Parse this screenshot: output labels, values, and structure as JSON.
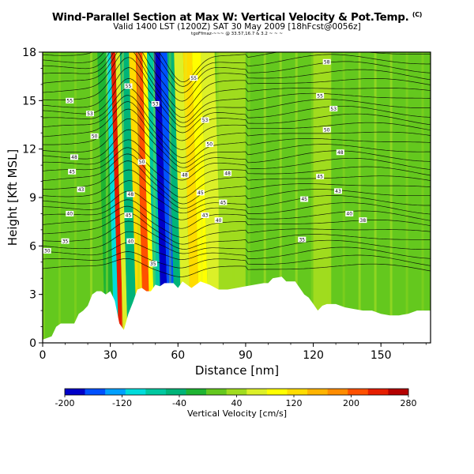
{
  "header": {
    "title": "Wind-Parallel Section at Max W: Vertical Velocity & Pot.Temp.",
    "title_suffix": "(C)",
    "subtitle": "Valid 1400 LST (1200Z) SAT 30 May 2009 [18hFcst@0056z]",
    "source_line": "tgoFfmaz-~~~ @ 33.57,16.7 & 3.2 ~ ~ ~"
  },
  "chart_data": {
    "type": "heatmap",
    "title": "Wind-Parallel Section at Max W: Vertical Velocity & Pot.Temp.",
    "xlabel": "Distance [nm]",
    "ylabel": "Height [Kft MSL]",
    "xlim": [
      0,
      172
    ],
    "ylim": [
      0,
      18
    ],
    "xticks": [
      0,
      30,
      60,
      90,
      120,
      150
    ],
    "yticks": [
      0,
      3,
      6,
      9,
      12,
      15,
      18
    ],
    "grid": false,
    "colorbar": {
      "label": "Vertical Velocity [cm/s]",
      "ticks": [
        -200,
        -120,
        -40,
        40,
        120,
        200,
        280
      ],
      "range": [
        -200,
        280
      ],
      "colors": [
        "#0000c8",
        "#0050ff",
        "#00a0ff",
        "#00dcdc",
        "#00c8a0",
        "#00b478",
        "#1eb432",
        "#64c81e",
        "#a0dc1e",
        "#dcf028",
        "#ffff00",
        "#ffdc00",
        "#ffb400",
        "#ff8c00",
        "#ff5000",
        "#e61e00",
        "#b40000"
      ]
    },
    "colorscale_note": "",
    "bands": [
      {
        "x": 0,
        "v": 20
      },
      {
        "x": 10,
        "v": 10
      },
      {
        "x": 20,
        "v": 15
      },
      {
        "x": 26,
        "v": -20
      },
      {
        "x": 30,
        "v": -100
      },
      {
        "x": 32,
        "v": 240
      },
      {
        "x": 34,
        "v": 80
      },
      {
        "x": 36,
        "v": -40
      },
      {
        "x": 40,
        "v": 120
      },
      {
        "x": 43,
        "v": 200
      },
      {
        "x": 46,
        "v": 90
      },
      {
        "x": 48,
        "v": -80
      },
      {
        "x": 51,
        "v": -180
      },
      {
        "x": 54,
        "v": -150
      },
      {
        "x": 57,
        "v": -40
      },
      {
        "x": 60,
        "v": 60
      },
      {
        "x": 64,
        "v": 130
      },
      {
        "x": 68,
        "v": 110
      },
      {
        "x": 72,
        "v": 60
      },
      {
        "x": 78,
        "v": 30
      },
      {
        "x": 90,
        "v": 10
      },
      {
        "x": 100,
        "v": 25
      },
      {
        "x": 110,
        "v": 15
      },
      {
        "x": 120,
        "v": 30
      },
      {
        "x": 128,
        "v": 15
      },
      {
        "x": 140,
        "v": 20
      },
      {
        "x": 150,
        "v": 10
      },
      {
        "x": 160,
        "v": 25
      },
      {
        "x": 172,
        "v": 10
      }
    ],
    "terrain": [
      [
        0,
        0.2
      ],
      [
        4,
        0.4
      ],
      [
        6,
        1.0
      ],
      [
        8,
        1.2
      ],
      [
        14,
        1.2
      ],
      [
        16,
        1.8
      ],
      [
        18,
        2.0
      ],
      [
        20,
        2.3
      ],
      [
        22,
        3.0
      ],
      [
        24,
        3.2
      ],
      [
        26,
        3.2
      ],
      [
        28,
        3.0
      ],
      [
        30,
        3.2
      ],
      [
        32,
        2.6
      ],
      [
        34,
        1.2
      ],
      [
        36,
        0.8
      ],
      [
        38,
        1.8
      ],
      [
        40,
        2.5
      ],
      [
        42,
        3.3
      ],
      [
        44,
        3.4
      ],
      [
        46,
        3.2
      ],
      [
        48,
        3.2
      ],
      [
        50,
        3.6
      ],
      [
        52,
        3.5
      ],
      [
        54,
        3.7
      ],
      [
        58,
        3.7
      ],
      [
        60,
        3.4
      ],
      [
        62,
        3.8
      ],
      [
        66,
        3.4
      ],
      [
        70,
        3.8
      ],
      [
        74,
        3.6
      ],
      [
        78,
        3.3
      ],
      [
        82,
        3.3
      ],
      [
        86,
        3.4
      ],
      [
        90,
        3.5
      ],
      [
        94,
        3.6
      ],
      [
        98,
        3.7
      ],
      [
        100,
        3.7
      ],
      [
        102,
        4.0
      ],
      [
        106,
        4.1
      ],
      [
        108,
        3.8
      ],
      [
        112,
        3.8
      ],
      [
        116,
        3.0
      ],
      [
        118,
        2.8
      ],
      [
        120,
        2.4
      ],
      [
        122,
        2.0
      ],
      [
        124,
        2.3
      ],
      [
        126,
        2.4
      ],
      [
        130,
        2.4
      ],
      [
        134,
        2.2
      ],
      [
        138,
        2.1
      ],
      [
        142,
        2.0
      ],
      [
        146,
        2.0
      ],
      [
        150,
        1.8
      ],
      [
        154,
        1.7
      ],
      [
        158,
        1.7
      ],
      [
        162,
        1.8
      ],
      [
        166,
        2.0
      ],
      [
        172,
        2.0
      ]
    ],
    "isentropes": {
      "count": 30,
      "base_height": 4.6,
      "spacing": 0.46,
      "labels": [
        {
          "x": 12,
          "y": 15.0,
          "text": "55"
        },
        {
          "x": 21,
          "y": 14.2,
          "text": "53"
        },
        {
          "x": 23,
          "y": 12.8,
          "text": "50"
        },
        {
          "x": 14,
          "y": 11.5,
          "text": "48"
        },
        {
          "x": 13,
          "y": 10.6,
          "text": "45"
        },
        {
          "x": 17,
          "y": 9.5,
          "text": "43"
        },
        {
          "x": 12,
          "y": 8.0,
          "text": "40"
        },
        {
          "x": 10,
          "y": 6.3,
          "text": "35"
        },
        {
          "x": 2,
          "y": 5.7,
          "text": "30"
        },
        {
          "x": 38,
          "y": 15.9,
          "text": "55"
        },
        {
          "x": 50,
          "y": 14.8,
          "text": "53"
        },
        {
          "x": 44,
          "y": 11.2,
          "text": "50"
        },
        {
          "x": 39,
          "y": 9.2,
          "text": "48"
        },
        {
          "x": 38,
          "y": 7.9,
          "text": "45"
        },
        {
          "x": 39,
          "y": 6.3,
          "text": "40"
        },
        {
          "x": 49,
          "y": 4.9,
          "text": "35"
        },
        {
          "x": 67,
          "y": 16.4,
          "text": "55"
        },
        {
          "x": 72,
          "y": 13.8,
          "text": "53"
        },
        {
          "x": 74,
          "y": 12.3,
          "text": "50"
        },
        {
          "x": 63,
          "y": 10.4,
          "text": "48"
        },
        {
          "x": 70,
          "y": 9.3,
          "text": "45"
        },
        {
          "x": 72,
          "y": 7.9,
          "text": "43"
        },
        {
          "x": 82,
          "y": 10.5,
          "text": "48"
        },
        {
          "x": 80,
          "y": 8.7,
          "text": "45"
        },
        {
          "x": 78,
          "y": 7.6,
          "text": "40"
        },
        {
          "x": 126,
          "y": 17.4,
          "text": "58"
        },
        {
          "x": 123,
          "y": 15.3,
          "text": "55"
        },
        {
          "x": 129,
          "y": 14.5,
          "text": "53"
        },
        {
          "x": 126,
          "y": 13.2,
          "text": "50"
        },
        {
          "x": 132,
          "y": 11.8,
          "text": "48"
        },
        {
          "x": 123,
          "y": 10.3,
          "text": "45"
        },
        {
          "x": 131,
          "y": 9.4,
          "text": "43"
        },
        {
          "x": 136,
          "y": 8.0,
          "text": "40"
        },
        {
          "x": 142,
          "y": 7.6,
          "text": "38"
        },
        {
          "x": 116,
          "y": 8.9,
          "text": "45"
        },
        {
          "x": 115,
          "y": 6.4,
          "text": "35"
        }
      ]
    }
  }
}
